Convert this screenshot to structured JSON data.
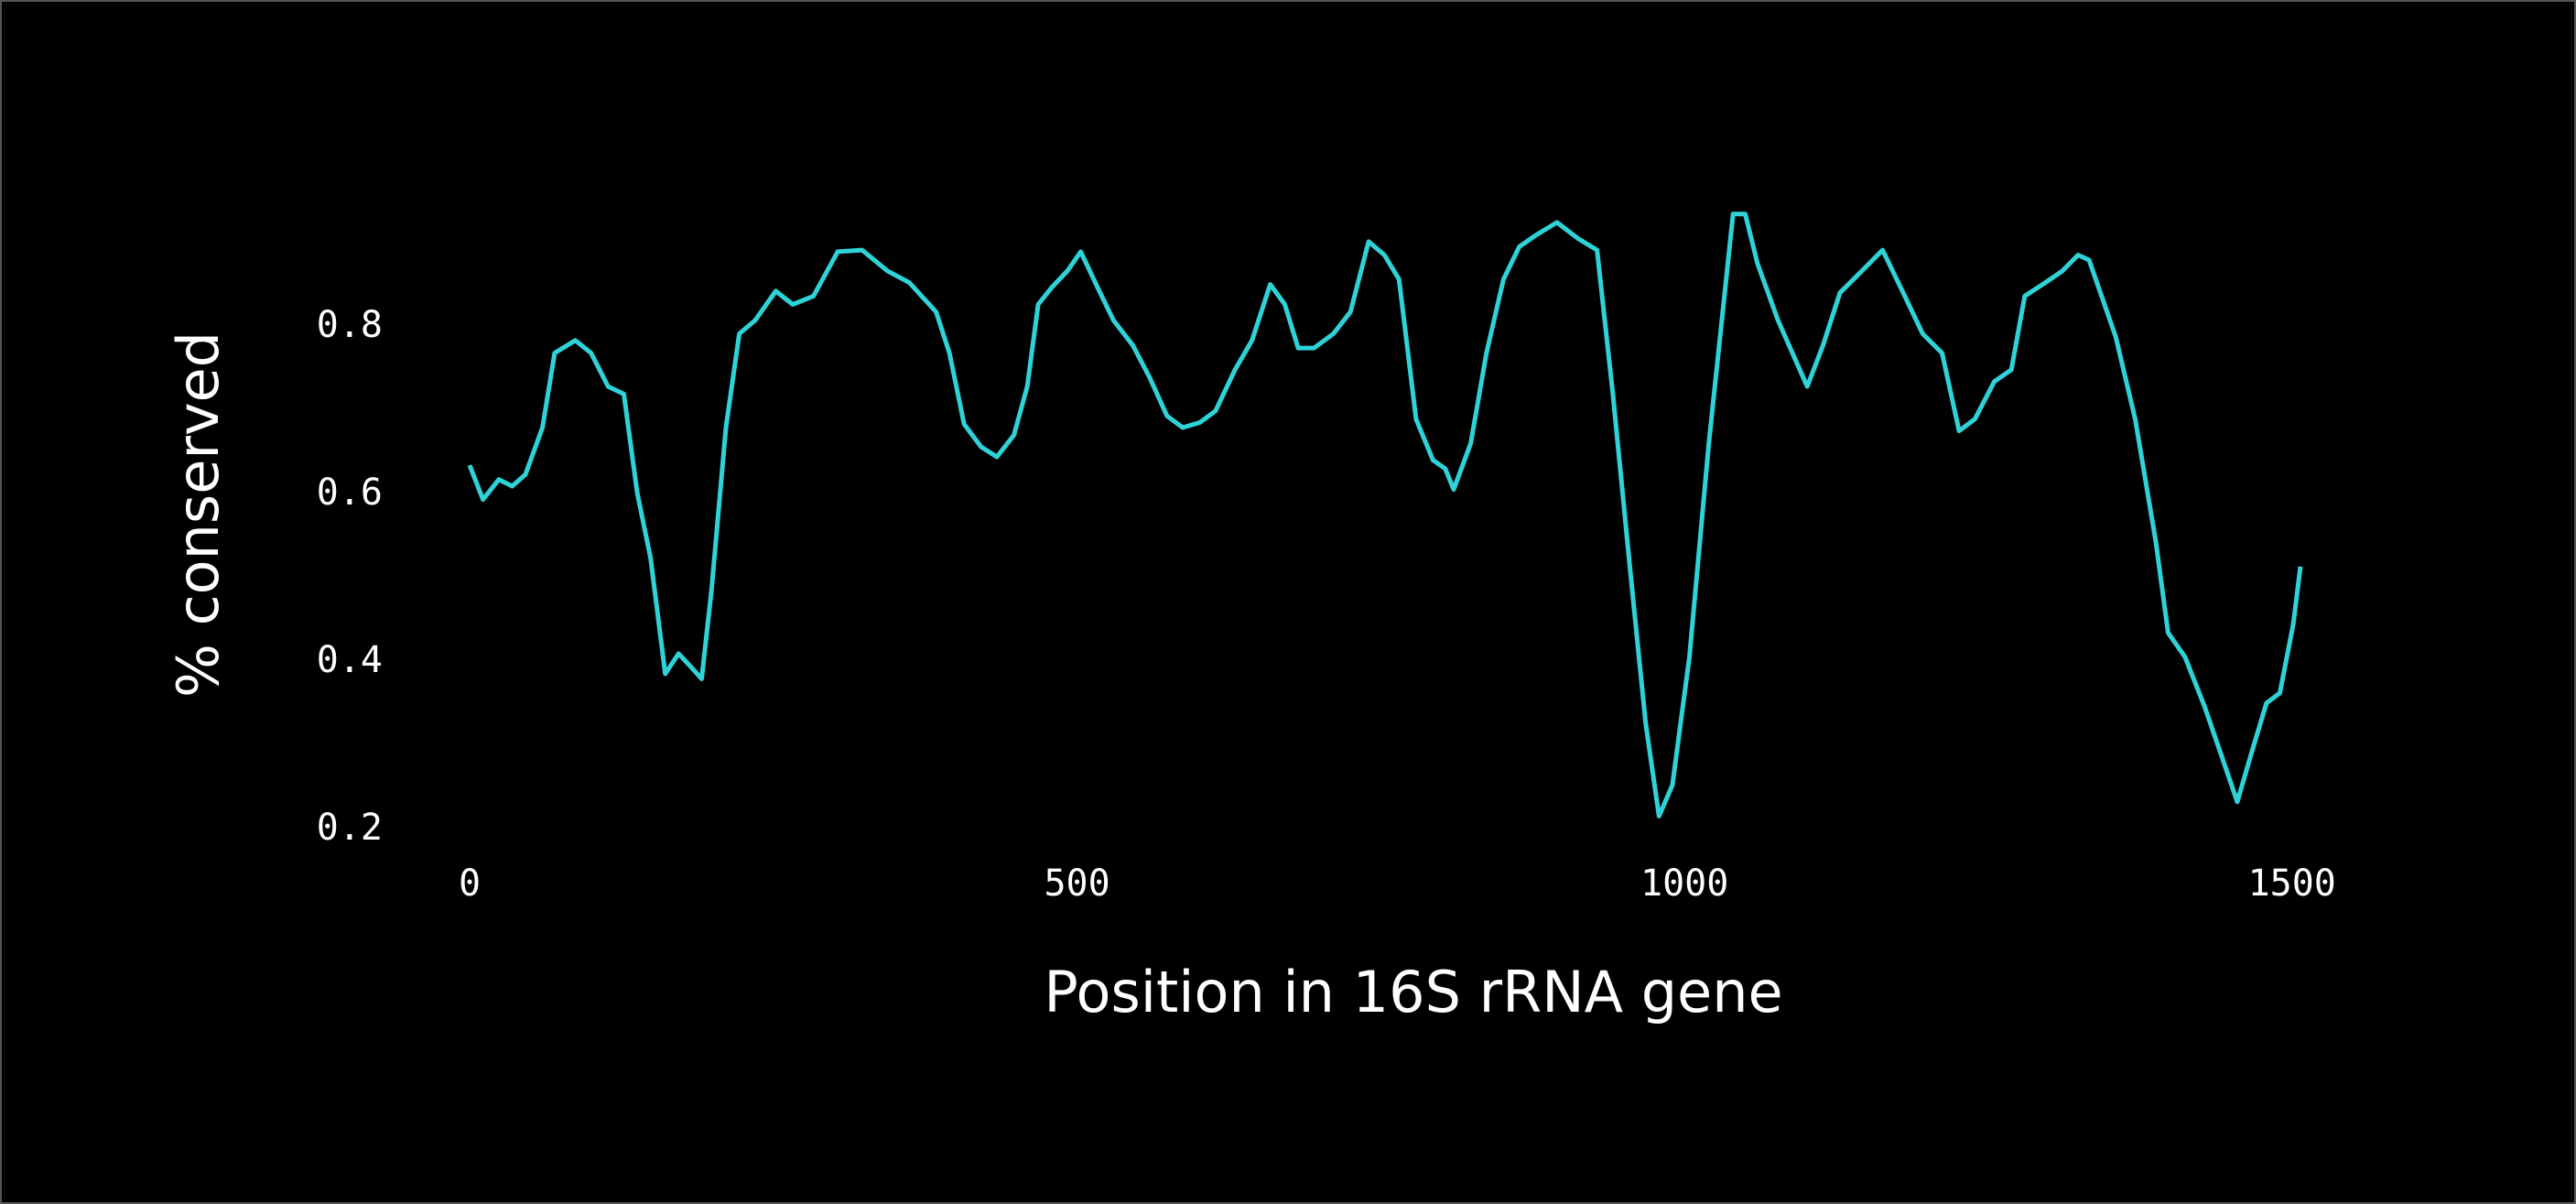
{
  "chart_data": {
    "type": "line",
    "x_label": "Position in 16S rRNA gene",
    "y_label": "% conserved",
    "x": [
      0,
      11,
      24,
      35,
      46,
      60,
      70,
      87,
      100,
      114,
      127,
      138,
      149,
      161,
      172,
      181,
      191,
      199,
      211,
      222,
      235,
      252,
      266,
      283,
      303,
      323,
      344,
      362,
      384,
      395,
      407,
      421,
      434,
      448,
      459,
      468,
      479,
      492,
      503,
      517,
      530,
      546,
      560,
      574,
      587,
      601,
      614,
      630,
      644,
      659,
      671,
      682,
      695,
      711,
      725,
      740,
      753,
      765,
      779,
      793,
      803,
      810,
      824,
      837,
      851,
      864,
      878,
      895,
      912,
      928,
      941,
      955,
      968,
      979,
      990,
      1004,
      1020,
      1040,
      1050,
      1060,
      1077,
      1087,
      1101,
      1114,
      1128,
      1146,
      1163,
      1180,
      1196,
      1212,
      1226,
      1239,
      1255,
      1269,
      1280,
      1297,
      1311,
      1324,
      1333,
      1355,
      1371,
      1388,
      1398,
      1412,
      1428,
      1442,
      1455,
      1466,
      1479,
      1490,
      1501,
      1507
    ],
    "series": [
      {
        "color": "#2ed3d8",
        "values": [
          0.635,
          0.594,
          0.618,
          0.61,
          0.624,
          0.68,
          0.769,
          0.784,
          0.769,
          0.729,
          0.72,
          0.602,
          0.524,
          0.386,
          0.41,
          0.396,
          0.38,
          0.484,
          0.68,
          0.792,
          0.808,
          0.843,
          0.827,
          0.837,
          0.89,
          0.892,
          0.867,
          0.853,
          0.818,
          0.769,
          0.684,
          0.657,
          0.645,
          0.671,
          0.729,
          0.827,
          0.847,
          0.867,
          0.89,
          0.847,
          0.808,
          0.778,
          0.739,
          0.694,
          0.68,
          0.686,
          0.7,
          0.749,
          0.784,
          0.851,
          0.827,
          0.775,
          0.775,
          0.792,
          0.818,
          0.902,
          0.886,
          0.857,
          0.69,
          0.641,
          0.631,
          0.606,
          0.661,
          0.769,
          0.857,
          0.896,
          0.91,
          0.925,
          0.906,
          0.892,
          0.72,
          0.514,
          0.327,
          0.216,
          0.253,
          0.406,
          0.661,
          0.935,
          0.935,
          0.876,
          0.808,
          0.775,
          0.729,
          0.778,
          0.841,
          0.867,
          0.892,
          0.841,
          0.792,
          0.769,
          0.676,
          0.69,
          0.735,
          0.749,
          0.837,
          0.853,
          0.867,
          0.886,
          0.88,
          0.788,
          0.69,
          0.543,
          0.435,
          0.406,
          0.347,
          0.288,
          0.233,
          0.288,
          0.351,
          0.363,
          0.445,
          0.514
        ]
      }
    ],
    "xlim": [
      0,
      1510
    ],
    "ylim": [
      0.2,
      0.95
    ],
    "xticks": [
      0,
      500,
      1000,
      1500
    ],
    "yticks": [
      0.2,
      0.4,
      0.6,
      0.8
    ],
    "grid": false
  }
}
